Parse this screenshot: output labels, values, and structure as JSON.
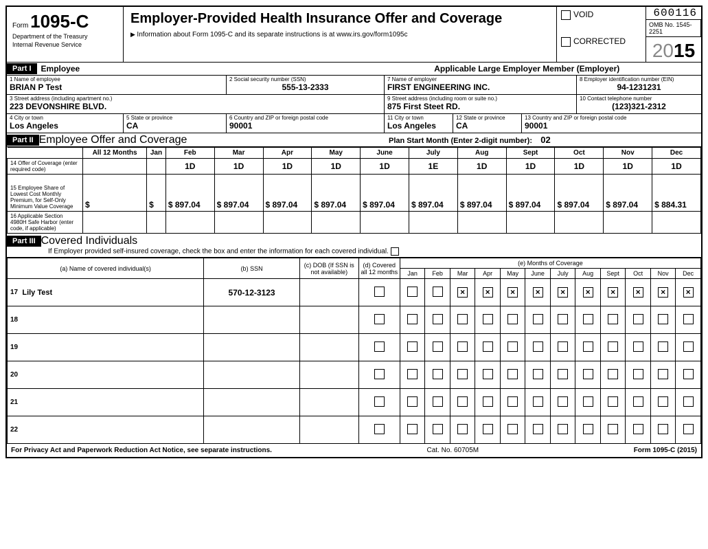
{
  "header": {
    "form_prefix": "Form",
    "form_number": "1095-C",
    "dept_line1": "Department of the Treasury",
    "dept_line2": "Internal Revenue Service",
    "title": "Employer-Provided Health Insurance Offer and Coverage",
    "subtitle": "Information about Form 1095-C and its separate instructions is at www.irs.gov/form1095c",
    "ocr_number": "600116",
    "omb": "OMB No. 1545-2251",
    "year_prefix": "20",
    "year_bold": "15",
    "void_label": "VOID",
    "corrected_label": "CORRECTED"
  },
  "part1": {
    "tag": "Part I",
    "employee_hdr": "Employee",
    "employer_hdr": "Applicable Large Employer Member (Employer)",
    "f1_label": "1 Name of employee",
    "f1_value": "BRIAN P Test",
    "f2_label": "2 Social security number (SSN)",
    "f2_value": "555-13-2333",
    "f7_label": "7 Name of employer",
    "f7_value": "FIRST ENGINEERING INC.",
    "f8_label": "8 Employer identification number (EIN)",
    "f8_value": "94-1231231",
    "f3_label": "3 Street address (including apartment no.)",
    "f3_value": "223 DEVONSHIRE BLVD.",
    "f9_label": "9 Street address (including room or suite no.)",
    "f9_value": "875 First Steet RD.",
    "f10_label": "10 Contact telephone number",
    "f10_value": "(123)321-2312",
    "f4_label": "4 City or town",
    "f4_value": "Los Angeles",
    "f5_label": "5 State or province",
    "f5_value": "CA",
    "f6_label": "6 Country and ZIP or foreign postal code",
    "f6_value": "90001",
    "f11_label": "11 City or town",
    "f11_value": "Los Angeles",
    "f12_label": "12 State or province",
    "f12_value": "CA",
    "f13_label": "13 Country and ZIP or foreign postal code",
    "f13_value": "90001"
  },
  "part2": {
    "tag": "Part II",
    "title": "Employee Offer and Coverage",
    "plan_start_label": "Plan Start Month (Enter 2-digit number):",
    "plan_start_value": "02",
    "cols": [
      "All 12 Months",
      "Jan",
      "Feb",
      "Mar",
      "Apr",
      "May",
      "June",
      "July",
      "Aug",
      "Sept",
      "Oct",
      "Nov",
      "Dec"
    ],
    "row14_label": "14 Offer of Coverage (enter required code)",
    "row14": [
      "",
      "",
      "1D",
      "1D",
      "1D",
      "1D",
      "1D",
      "1E",
      "1D",
      "1D",
      "1D",
      "1D",
      "1D"
    ],
    "row15_label": "15 Employee Share of Lowest Cost Monthly Premium, for Self-Only Minimum Value Coverage",
    "row15": [
      "$",
      "$",
      "$ 897.04",
      "$ 897.04",
      "$ 897.04",
      "$ 897.04",
      "$ 897.04",
      "$ 897.04",
      "$ 897.04",
      "$ 897.04",
      "$ 897.04",
      "$ 897.04",
      "$ 884.31"
    ],
    "row16_label": "16 Applicable Section 4980H Safe Harbor (enter code, if applicable)",
    "row16": [
      "",
      "",
      "",
      "",
      "",
      "",
      "",
      "",
      "",
      "",
      "",
      "",
      ""
    ]
  },
  "part3": {
    "tag": "Part III",
    "title": "Covered Individuals",
    "sub": "If Employer provided self-insured coverage, check the box and enter the information for each covered individual.",
    "col_a": "(a) Name of covered individual(s)",
    "col_b": "(b) SSN",
    "col_c": "(c) DOB (If SSN is not available)",
    "col_d": "(d) Covered all 12 months",
    "col_e": "(e) Months of Coverage",
    "months": [
      "Jan",
      "Feb",
      "Mar",
      "Apr",
      "May",
      "June",
      "July",
      "Aug",
      "Sept",
      "Oct",
      "Nov",
      "Dec"
    ],
    "rows": [
      {
        "n": "17",
        "name": "Lily Test",
        "ssn": "570-12-3123",
        "dob": "",
        "all12": false,
        "m": [
          false,
          false,
          true,
          true,
          true,
          true,
          true,
          true,
          true,
          true,
          true,
          true
        ]
      },
      {
        "n": "18",
        "name": "",
        "ssn": "",
        "dob": "",
        "all12": false,
        "m": [
          false,
          false,
          false,
          false,
          false,
          false,
          false,
          false,
          false,
          false,
          false,
          false
        ]
      },
      {
        "n": "19",
        "name": "",
        "ssn": "",
        "dob": "",
        "all12": false,
        "m": [
          false,
          false,
          false,
          false,
          false,
          false,
          false,
          false,
          false,
          false,
          false,
          false
        ]
      },
      {
        "n": "20",
        "name": "",
        "ssn": "",
        "dob": "",
        "all12": false,
        "m": [
          false,
          false,
          false,
          false,
          false,
          false,
          false,
          false,
          false,
          false,
          false,
          false
        ]
      },
      {
        "n": "21",
        "name": "",
        "ssn": "",
        "dob": "",
        "all12": false,
        "m": [
          false,
          false,
          false,
          false,
          false,
          false,
          false,
          false,
          false,
          false,
          false,
          false
        ]
      },
      {
        "n": "22",
        "name": "",
        "ssn": "",
        "dob": "",
        "all12": false,
        "m": [
          false,
          false,
          false,
          false,
          false,
          false,
          false,
          false,
          false,
          false,
          false,
          false
        ]
      }
    ]
  },
  "footer": {
    "left": "For Privacy Act and Paperwork Reduction Act Notice, see separate instructions.",
    "mid": "Cat. No. 60705M",
    "right_prefix": "Form ",
    "right_form": "1095-C",
    "right_year": " (2015)"
  }
}
